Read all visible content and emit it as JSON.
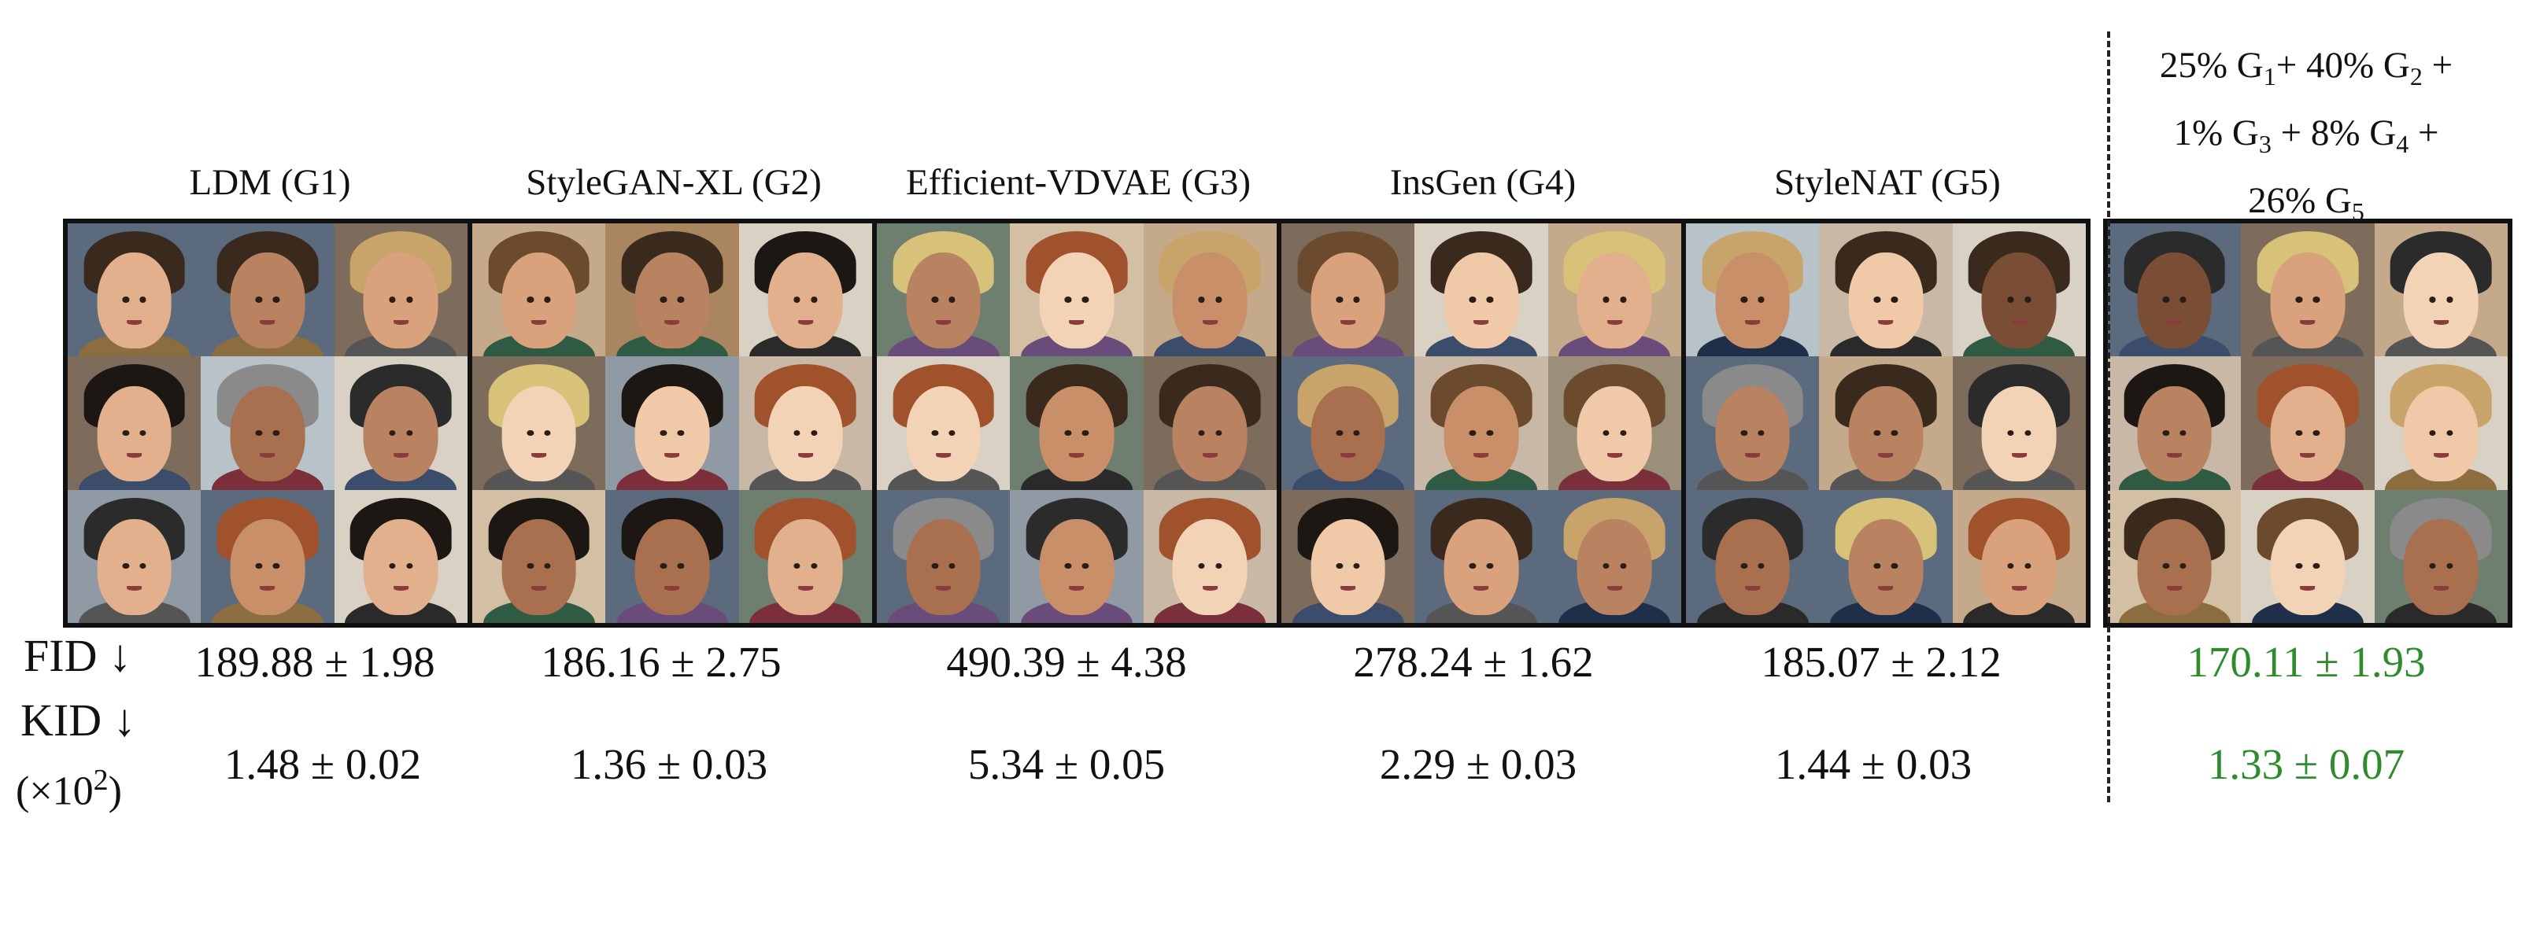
{
  "models": [
    {
      "title": "LDM (G1)",
      "fid": "189.88 ± 1.98",
      "kid": "1.48 ± 0.02"
    },
    {
      "title": "StyleGAN-XL (G2)",
      "fid": "186.16 ± 2.75",
      "kid": "1.36 ± 0.03"
    },
    {
      "title": "Efficient-VDVAE (G3)",
      "fid": "490.39 ± 4.38",
      "kid": "5.34 ± 0.05"
    },
    {
      "title": "InsGen (G4)",
      "fid": "278.24 ± 1.62",
      "kid": "2.29 ± 0.03"
    },
    {
      "title": "StyleNAT (G5)",
      "fid": "185.07 ± 2.12",
      "kid": "1.44 ± 0.03"
    }
  ],
  "mixture": {
    "line1": {
      "a": "25% G",
      "a_sub": "1",
      "b": "+ 40% G",
      "b_sub": "2",
      "c": " +"
    },
    "line2": {
      "a": "1% G",
      "a_sub": "3",
      "b": " + 8% G",
      "b_sub": "4",
      "c": " +"
    },
    "line3": {
      "a": "26% G",
      "a_sub": "5"
    },
    "fid": "170.11 ± 1.93",
    "kid": "1.33 ± 0.07"
  },
  "metrics": {
    "fid_label": "FID ↓",
    "kid_label": "KID ↓",
    "kid_scale_open": "(×10",
    "kid_scale_exp": "2",
    "kid_scale_close": ")"
  },
  "colors": {
    "highlight": "#2e8b2e"
  }
}
